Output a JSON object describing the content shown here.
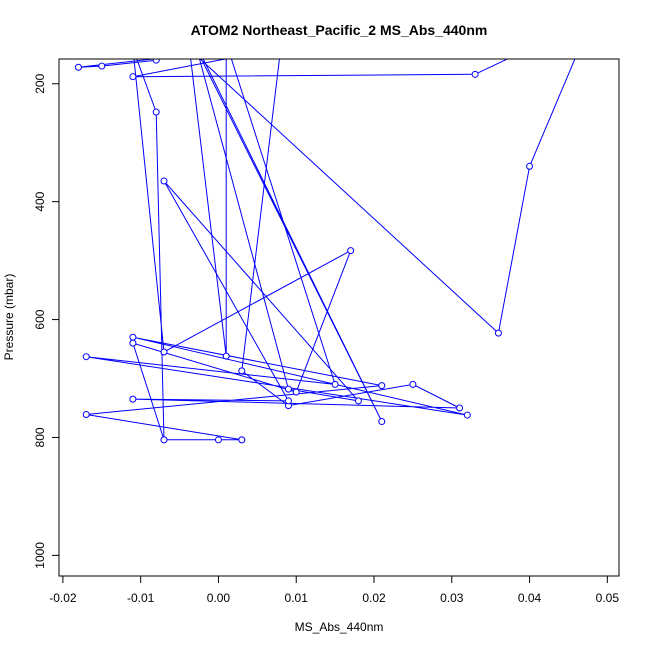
{
  "chart_data": {
    "type": "line",
    "title": "ATOM2 Northeast_Pacific_2 MS_Abs_440nm",
    "xlabel": "MS_Abs_440nm",
    "ylabel": "Pressure (mbar)",
    "xlim": [
      -0.0205,
      0.0515
    ],
    "ylim": [
      1035,
      158
    ],
    "y_reversed": true,
    "xticks": [
      "-0.02",
      "-0.01",
      "0.00",
      "0.01",
      "0.02",
      "0.03",
      "0.04",
      "0.05"
    ],
    "xtick_values": [
      -0.02,
      -0.01,
      0.0,
      0.01,
      0.02,
      0.03,
      0.04,
      0.05
    ],
    "yticks": [
      "200",
      "400",
      "600",
      "800",
      "1000"
    ],
    "ytick_values": [
      200,
      400,
      600,
      800,
      1000
    ],
    "color": "#0000ff",
    "marker": "open-circle",
    "grid": false,
    "legend": "none",
    "series": [
      {
        "x": [
          -0.008,
          -0.015,
          -0.018,
          -0.003,
          0.036,
          0.04,
          0.048,
          0.033,
          -0.011,
          0.008,
          0.003,
          0.009,
          0.025,
          0.031,
          -0.011,
          0.009,
          -0.007,
          0.018,
          0.009,
          -0.003,
          0.021,
          -0.004,
          0.001,
          0.001,
          0.015,
          -0.017,
          0.032,
          -0.011,
          0.021,
          -0.017,
          0.003,
          0.0,
          0.003,
          -0.007,
          -0.011,
          0.01,
          0.017,
          -0.007,
          -0.011,
          -0.008,
          -0.007
        ],
        "y": [
          160,
          170,
          172,
          150,
          623,
          340,
          90,
          184,
          188,
          140,
          687,
          746,
          710,
          750,
          735,
          738,
          365,
          738,
          718,
          130,
          773,
          110,
          662,
          130,
          710,
          663,
          762,
          630,
          712,
          761,
          804,
          804,
          804,
          804,
          640,
          723,
          483,
          655,
          140,
          248,
          804
        ]
      }
    ]
  }
}
